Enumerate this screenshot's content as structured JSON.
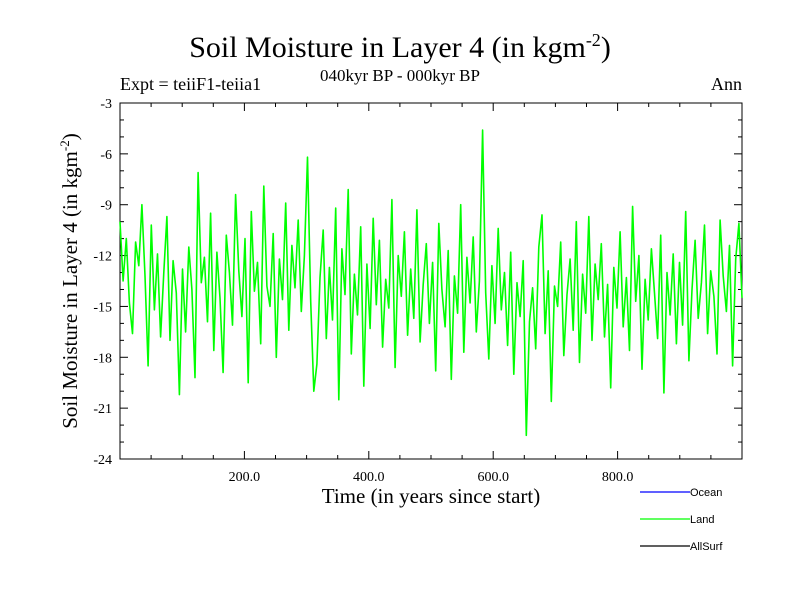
{
  "chart_data": {
    "type": "line",
    "title": "Soil Moisture in Layer 4 (in kgm",
    "title_sup": "-2",
    "title_close": ")",
    "subtitle": "040kyr BP - 000kyr BP",
    "expt_label": "Expt = teiiF1-teiia1",
    "season_label": "Ann",
    "xlabel": "Time (in years since start)",
    "ylabel": "Soil Moisture in Layer 4 (in kgm",
    "ylabel_sup": "-2",
    "ylabel_close": ")",
    "xlim": [
      0,
      1000
    ],
    "ylim": [
      -24,
      -3
    ],
    "xticks": [
      200,
      400,
      600,
      800
    ],
    "xtick_labels": [
      "200.0",
      "400.0",
      "600.0",
      "800.0"
    ],
    "yticks": [
      -3,
      -6,
      -9,
      -12,
      -15,
      -18,
      -21,
      -24
    ],
    "ytick_labels": [
      "-3",
      "-6",
      "-9",
      "-12",
      "-15",
      "-18",
      "-21",
      "-24"
    ],
    "legend_position": "bottom-right, below plot",
    "series": [
      {
        "name": "Ocean",
        "color": "#0000ff",
        "values": []
      },
      {
        "name": "Land",
        "color": "#00ff00",
        "values": [
          -10.0,
          -13.5,
          -11.0,
          -14.8,
          -16.6,
          -11.2,
          -12.6,
          -9.0,
          -13.2,
          -18.5,
          -10.2,
          -15.2,
          -11.9,
          -16.8,
          -13.0,
          -9.7,
          -17.0,
          -12.3,
          -14.2,
          -20.2,
          -12.8,
          -16.5,
          -11.5,
          -14.0,
          -19.2,
          -7.1,
          -13.6,
          -12.1,
          -15.9,
          -9.5,
          -17.6,
          -11.8,
          -14.5,
          -18.9,
          -10.8,
          -13.0,
          -16.1,
          -8.4,
          -12.9,
          -15.6,
          -11.0,
          -19.5,
          -9.4,
          -14.1,
          -12.4,
          -17.2,
          -7.9,
          -13.8,
          -15.0,
          -10.7,
          -18.0,
          -12.2,
          -14.6,
          -8.9,
          -16.4,
          -11.4,
          -13.9,
          -9.9,
          -15.3,
          -12.0,
          -6.2,
          -14.7,
          -20.0,
          -18.4,
          -13.3,
          -10.5,
          -16.9,
          -12.7,
          -15.8,
          -9.2,
          -20.5,
          -11.6,
          -14.3,
          -8.1,
          -17.8,
          -13.1,
          -15.5,
          -10.3,
          -19.7,
          -12.5,
          -16.3,
          -9.8,
          -14.9,
          -11.1,
          -17.4,
          -13.4,
          -15.1,
          -8.7,
          -18.6,
          -12.0,
          -14.4,
          -10.6,
          -16.7,
          -12.8,
          -15.7,
          -9.3,
          -17.1,
          -13.7,
          -11.3,
          -16.0,
          -12.4,
          -18.8,
          -10.1,
          -14.0,
          -16.2,
          -11.7,
          -19.3,
          -13.2,
          -15.4,
          -9.0,
          -17.7,
          -12.1,
          -14.8,
          -10.9,
          -16.5,
          -13.5,
          -4.6,
          -14.2,
          -18.1,
          -12.6,
          -16.0,
          -10.4,
          -15.2,
          -13.0,
          -17.3,
          -11.8,
          -19.0,
          -13.6,
          -15.6,
          -12.3,
          -22.6,
          -15.9,
          -13.9,
          -17.5,
          -11.5,
          -9.6,
          -16.6,
          -12.9,
          -20.6,
          -13.8,
          -15.0,
          -11.2,
          -17.9,
          -14.3,
          -12.2,
          -16.4,
          -10.0,
          -18.3,
          -13.1,
          -15.4,
          -9.7,
          -17.0,
          -12.5,
          -14.6,
          -11.3,
          -16.8,
          -13.7,
          -19.8,
          -12.7,
          -15.1,
          -10.6,
          -16.2,
          -13.3,
          -17.6,
          -9.1,
          -14.7,
          -12.0,
          -18.7,
          -13.4,
          -15.8,
          -11.6,
          -14.2,
          -16.9,
          -10.8,
          -20.1,
          -13.0,
          -15.5,
          -11.9,
          -17.2,
          -12.4,
          -16.1,
          -9.4,
          -18.2,
          -14.0,
          -11.1,
          -15.7,
          -13.6,
          -10.2,
          -16.6,
          -12.9,
          -14.4,
          -17.8,
          -9.9,
          -13.2,
          -15.3,
          -11.4,
          -18.5,
          -12.2,
          -10.1,
          -14.5
        ]
      },
      {
        "name": "AllSurf",
        "color": "#000000",
        "values": []
      }
    ]
  }
}
